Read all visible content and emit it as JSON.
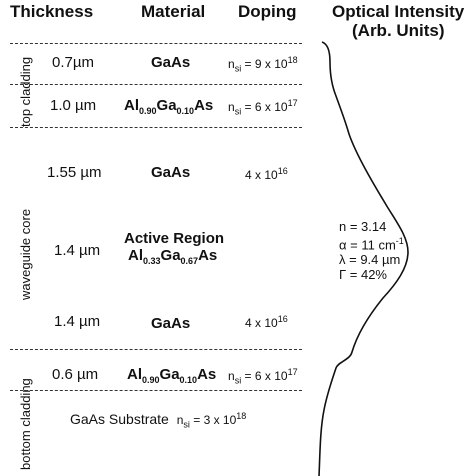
{
  "headers": {
    "thickness": "Thickness",
    "material": "Material",
    "doping": "Doping",
    "intensity_line1": "Optical Intensity",
    "intensity_line2": "(Arb. Units)"
  },
  "regions": {
    "top_cladding": "top cladding",
    "waveguide_core": "waveguide core",
    "bottom_cladding": "bottom cladding"
  },
  "layers": [
    {
      "thickness": "0.7µm",
      "material": "GaAs",
      "doping_base": "n",
      "doping_sub": "si",
      "doping_mid": " = 9 x 10",
      "doping_sup": "18"
    },
    {
      "thickness": "1.0 µm",
      "material_parts": [
        "Al",
        "0.90",
        "Ga",
        "0.10",
        "As"
      ],
      "doping_base": "n",
      "doping_sub": "si",
      "doping_mid": " = 6 x 10",
      "doping_sup": "17"
    },
    {
      "thickness": "1.55 µm",
      "material": "GaAs",
      "doping_mid": "4 x 10",
      "doping_sup": "16"
    },
    {
      "thickness": "1.4 µm",
      "material": "Active Region",
      "material_parts": [
        "Al",
        "0.33",
        "Ga",
        "0.67",
        "As"
      ]
    },
    {
      "thickness": "1.4 µm",
      "material": "GaAs",
      "doping_mid": "4 x 10",
      "doping_sup": "16"
    },
    {
      "thickness": "0.6 µm",
      "material_parts": [
        "Al",
        "0.90",
        "Ga",
        "0.10",
        "As"
      ],
      "doping_base": "n",
      "doping_sub": "si",
      "doping_mid": " = 6 x 10",
      "doping_sup": "17"
    }
  ],
  "substrate": {
    "label": "GaAs Substrate",
    "doping_base": "n",
    "doping_sub": "si",
    "doping_mid": " = 3 x 10",
    "doping_sup": "18"
  },
  "params": {
    "n": "n = 3.14",
    "alpha_prefix": "α = 11 cm",
    "alpha_sup": "-1",
    "lambda": "λ = 9.4 µm",
    "gamma": "Γ = 42%"
  },
  "profile": {
    "rest_level": 0.0,
    "peak_level": 1.0
  }
}
